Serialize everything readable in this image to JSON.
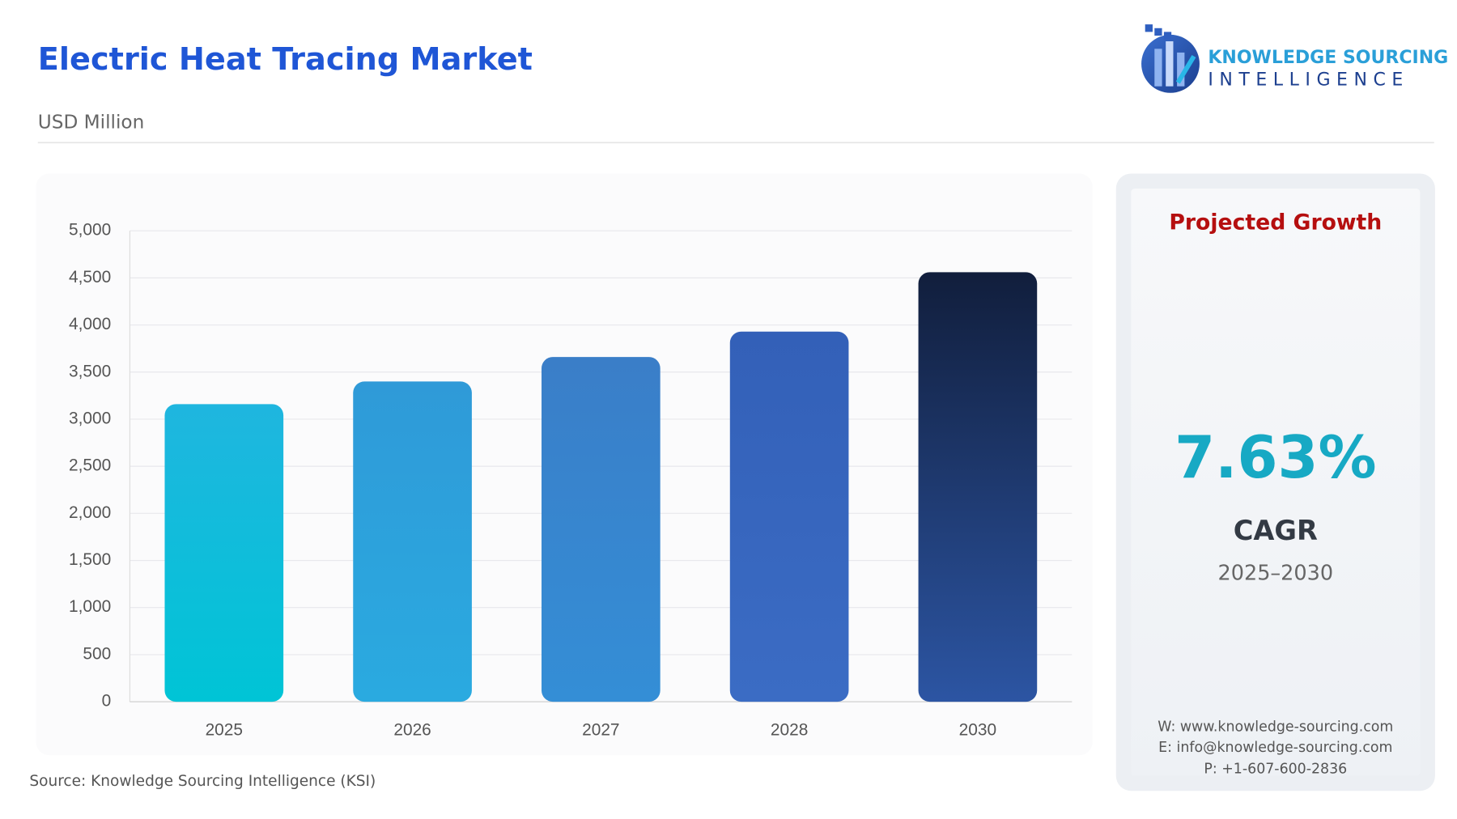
{
  "header": {
    "title": "Electric Heat Tracing Market",
    "subtitle": "USD Million"
  },
  "logo": {
    "line1": "KNOWLEDGE SOURCING",
    "line2": "INTELLIGENCE"
  },
  "chart_data": {
    "type": "bar",
    "categories": [
      "2025",
      "2026",
      "2027",
      "2028",
      "2030"
    ],
    "values": [
      3160,
      3400,
      3660,
      3930,
      4560
    ],
    "colors": [
      [
        "#1fb6df",
        "#00c4d6"
      ],
      [
        "#2f9ad8",
        "#2aaae0"
      ],
      [
        "#3a7ec8",
        "#348ed6"
      ],
      [
        "#3360b8",
        "#3b6cc4"
      ],
      [
        "#111e3c",
        "#2c55a3"
      ]
    ],
    "ylim": [
      0,
      5000
    ],
    "yticks": [
      0,
      500,
      {
        "value": 1000,
        "label": "1,000"
      },
      {
        "value": 1500,
        "label": "1,500"
      },
      {
        "value": 2000,
        "label": "2,000"
      },
      {
        "value": 2500,
        "label": "2,500"
      },
      {
        "value": 3000,
        "label": "3,000"
      },
      {
        "value": 3500,
        "label": "3,500"
      },
      {
        "value": 4000,
        "label": "4,000"
      },
      {
        "value": 4500,
        "label": "4,500"
      },
      {
        "value": 5000,
        "label": "5,000"
      }
    ],
    "grid": true
  },
  "panel": {
    "heading": "Projected Growth",
    "value": "7.63%",
    "label": "CAGR",
    "period": "2025–2030",
    "contacts": [
      "W: www.knowledge-sourcing.com",
      "E: info@knowledge-sourcing.com",
      "P: +1-607-600-2836"
    ]
  },
  "source": "Source: Knowledge Sourcing Intelligence (KSI)"
}
